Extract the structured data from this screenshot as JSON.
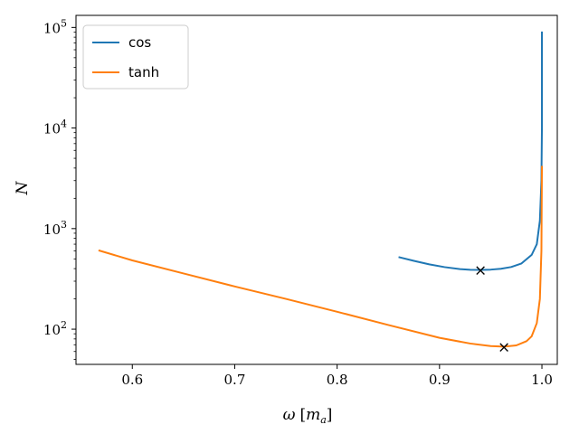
{
  "chart_data": {
    "type": "line",
    "title": "",
    "xlabel": "ω [m_a]",
    "xlabel_parts": {
      "symbol": "ω",
      "open": "[",
      "unit_base": "m",
      "unit_sub": "a",
      "close": "]"
    },
    "ylabel": "N",
    "xlim": [
      0.545,
      1.015
    ],
    "ylim_log10": [
      1.65,
      5.12
    ],
    "yscale": "log",
    "x_ticks": [
      0.6,
      0.7,
      0.8,
      0.9,
      1.0
    ],
    "x_tick_labels": [
      "0.6",
      "0.7",
      "0.8",
      "0.9",
      "1.0"
    ],
    "y_ticks": [
      {
        "exp": 2,
        "base": "10",
        "sup": "2"
      },
      {
        "exp": 3,
        "base": "10",
        "sup": "3"
      },
      {
        "exp": 4,
        "base": "10",
        "sup": "4"
      },
      {
        "exp": 5,
        "base": "10",
        "sup": "5"
      }
    ],
    "legend": {
      "placement": "top-left"
    },
    "series": [
      {
        "name": "cos",
        "color": "#1f77b4",
        "points": [
          [
            0.86,
            521
          ],
          [
            0.875,
            478
          ],
          [
            0.89,
            441
          ],
          [
            0.905,
            414
          ],
          [
            0.92,
            396
          ],
          [
            0.93,
            390
          ],
          [
            0.94,
            389
          ],
          [
            0.95,
            391
          ],
          [
            0.96,
            399
          ],
          [
            0.97,
            415
          ],
          [
            0.98,
            450
          ],
          [
            0.99,
            548
          ],
          [
            0.995,
            700
          ],
          [
            0.998,
            1200
          ],
          [
            0.9995,
            3000
          ],
          [
            1.0,
            10000
          ],
          [
            1.0,
            91000
          ]
        ],
        "marker": {
          "x": 0.94,
          "y": 389,
          "symbol": "×"
        }
      },
      {
        "name": "tanh",
        "color": "#ff7f0e",
        "points": [
          [
            0.567,
            608
          ],
          [
            0.6,
            483
          ],
          [
            0.65,
            358
          ],
          [
            0.7,
            266
          ],
          [
            0.75,
            200
          ],
          [
            0.8,
            149
          ],
          [
            0.85,
            110
          ],
          [
            0.9,
            82
          ],
          [
            0.93,
            72
          ],
          [
            0.95,
            68
          ],
          [
            0.963,
            67
          ],
          [
            0.975,
            69
          ],
          [
            0.985,
            76
          ],
          [
            0.99,
            85
          ],
          [
            0.995,
            115
          ],
          [
            0.998,
            200
          ],
          [
            0.9995,
            600
          ],
          [
            1.0,
            4200
          ]
        ],
        "marker": {
          "x": 0.963,
          "y": 67,
          "symbol": "×"
        }
      }
    ]
  }
}
